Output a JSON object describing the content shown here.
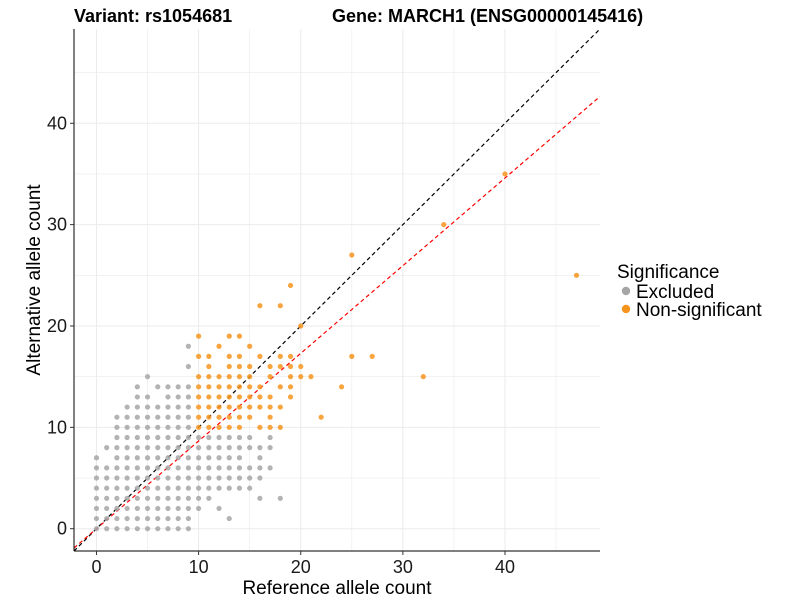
{
  "chart_data": {
    "type": "scatter",
    "title_left": "Variant: rs1054681",
    "title_right": "Gene: MARCH1 (ENSG00000145416)",
    "xlabel": "Reference allele count",
    "ylabel": "Alternative allele count",
    "xlim": [
      -2.2,
      49.3
    ],
    "ylim": [
      -2.2,
      49.3
    ],
    "xticks": [
      0,
      10,
      20,
      30,
      40
    ],
    "yticks": [
      0,
      10,
      20,
      30,
      40
    ],
    "grid": true,
    "legend": {
      "title": "Significance",
      "position": "right",
      "entries": [
        {
          "label": "Excluded",
          "color": "#a6a6a6"
        },
        {
          "label": "Non-significant",
          "color": "#f7941d"
        }
      ]
    },
    "reference_lines": [
      {
        "slope": 1.0,
        "intercept": 0,
        "color": "#000000",
        "style": "dashed"
      },
      {
        "slope": 0.865,
        "intercept": 0,
        "color": "#ff0000",
        "style": "dashed"
      }
    ],
    "series": [
      {
        "name": "Excluded",
        "color": "#a6a6a6",
        "points": [
          [
            0,
            0
          ],
          [
            0,
            1
          ],
          [
            0,
            2
          ],
          [
            0,
            3
          ],
          [
            0,
            4
          ],
          [
            0,
            5
          ],
          [
            0,
            6
          ],
          [
            0,
            7
          ],
          [
            1,
            0
          ],
          [
            1,
            1
          ],
          [
            1,
            2
          ],
          [
            1,
            3
          ],
          [
            1,
            4
          ],
          [
            1,
            5
          ],
          [
            1,
            6
          ],
          [
            1,
            8
          ],
          [
            2,
            0
          ],
          [
            2,
            1
          ],
          [
            2,
            2
          ],
          [
            2,
            3
          ],
          [
            2,
            4
          ],
          [
            2,
            5
          ],
          [
            2,
            6
          ],
          [
            2,
            7
          ],
          [
            2,
            8
          ],
          [
            2,
            9
          ],
          [
            2,
            10
          ],
          [
            2,
            11
          ],
          [
            3,
            0
          ],
          [
            3,
            1
          ],
          [
            3,
            2
          ],
          [
            3,
            3
          ],
          [
            3,
            4
          ],
          [
            3,
            5
          ],
          [
            3,
            6
          ],
          [
            3,
            7
          ],
          [
            3,
            8
          ],
          [
            3,
            9
          ],
          [
            3,
            10
          ],
          [
            3,
            11
          ],
          [
            3,
            12
          ],
          [
            4,
            0
          ],
          [
            4,
            1
          ],
          [
            4,
            2
          ],
          [
            4,
            3
          ],
          [
            4,
            4
          ],
          [
            4,
            5
          ],
          [
            4,
            6
          ],
          [
            4,
            7
          ],
          [
            4,
            8
          ],
          [
            4,
            9
          ],
          [
            4,
            10
          ],
          [
            4,
            11
          ],
          [
            4,
            12
          ],
          [
            4,
            13
          ],
          [
            4,
            14
          ],
          [
            5,
            0
          ],
          [
            5,
            1
          ],
          [
            5,
            2
          ],
          [
            5,
            3
          ],
          [
            5,
            4
          ],
          [
            5,
            5
          ],
          [
            5,
            6
          ],
          [
            5,
            7
          ],
          [
            5,
            8
          ],
          [
            5,
            9
          ],
          [
            5,
            10
          ],
          [
            5,
            11
          ],
          [
            5,
            12
          ],
          [
            5,
            13
          ],
          [
            5,
            15
          ],
          [
            6,
            0
          ],
          [
            6,
            1
          ],
          [
            6,
            2
          ],
          [
            6,
            3
          ],
          [
            6,
            4
          ],
          [
            6,
            5
          ],
          [
            6,
            6
          ],
          [
            6,
            7
          ],
          [
            6,
            8
          ],
          [
            6,
            9
          ],
          [
            6,
            10
          ],
          [
            6,
            11
          ],
          [
            6,
            12
          ],
          [
            6,
            14
          ],
          [
            7,
            0
          ],
          [
            7,
            1
          ],
          [
            7,
            2
          ],
          [
            7,
            3
          ],
          [
            7,
            4
          ],
          [
            7,
            5
          ],
          [
            7,
            6
          ],
          [
            7,
            7
          ],
          [
            7,
            8
          ],
          [
            7,
            9
          ],
          [
            7,
            10
          ],
          [
            7,
            11
          ],
          [
            7,
            12
          ],
          [
            7,
            13
          ],
          [
            7,
            14
          ],
          [
            8,
            0
          ],
          [
            8,
            1
          ],
          [
            8,
            2
          ],
          [
            8,
            3
          ],
          [
            8,
            4
          ],
          [
            8,
            5
          ],
          [
            8,
            6
          ],
          [
            8,
            7
          ],
          [
            8,
            8
          ],
          [
            8,
            9
          ],
          [
            8,
            10
          ],
          [
            8,
            11
          ],
          [
            8,
            12
          ],
          [
            8,
            13
          ],
          [
            8,
            14
          ],
          [
            9,
            0
          ],
          [
            9,
            1
          ],
          [
            9,
            2
          ],
          [
            9,
            3
          ],
          [
            9,
            4
          ],
          [
            9,
            5
          ],
          [
            9,
            6
          ],
          [
            9,
            7
          ],
          [
            9,
            8
          ],
          [
            9,
            9
          ],
          [
            9,
            10
          ],
          [
            9,
            11
          ],
          [
            9,
            12
          ],
          [
            9,
            13
          ],
          [
            9,
            14
          ],
          [
            9,
            16
          ],
          [
            9,
            18
          ],
          [
            10,
            2
          ],
          [
            10,
            3
          ],
          [
            10,
            4
          ],
          [
            10,
            5
          ],
          [
            10,
            6
          ],
          [
            10,
            7
          ],
          [
            10,
            8
          ],
          [
            10,
            9
          ],
          [
            11,
            3
          ],
          [
            11,
            4
          ],
          [
            11,
            5
          ],
          [
            11,
            6
          ],
          [
            11,
            7
          ],
          [
            11,
            8
          ],
          [
            11,
            9
          ],
          [
            12,
            2
          ],
          [
            12,
            4
          ],
          [
            12,
            5
          ],
          [
            12,
            6
          ],
          [
            12,
            7
          ],
          [
            12,
            8
          ],
          [
            12,
            9
          ],
          [
            13,
            1
          ],
          [
            13,
            4
          ],
          [
            13,
            5
          ],
          [
            13,
            6
          ],
          [
            13,
            7
          ],
          [
            13,
            8
          ],
          [
            13,
            9
          ],
          [
            14,
            4
          ],
          [
            14,
            5
          ],
          [
            14,
            6
          ],
          [
            14,
            7
          ],
          [
            14,
            8
          ],
          [
            14,
            9
          ],
          [
            15,
            4
          ],
          [
            15,
            5
          ],
          [
            15,
            6
          ],
          [
            15,
            8
          ],
          [
            15,
            9
          ],
          [
            16,
            3
          ],
          [
            16,
            5
          ],
          [
            16,
            6
          ],
          [
            16,
            7
          ],
          [
            16,
            8
          ],
          [
            17,
            6
          ],
          [
            17,
            8
          ],
          [
            17,
            9
          ],
          [
            18,
            3
          ]
        ]
      },
      {
        "name": "Non-significant",
        "color": "#f7941d",
        "points": [
          [
            10,
            10
          ],
          [
            10,
            11
          ],
          [
            10,
            12
          ],
          [
            10,
            13
          ],
          [
            10,
            14
          ],
          [
            10,
            15
          ],
          [
            10,
            17
          ],
          [
            10,
            19
          ],
          [
            11,
            10
          ],
          [
            11,
            11
          ],
          [
            11,
            12
          ],
          [
            11,
            13
          ],
          [
            11,
            14
          ],
          [
            11,
            15
          ],
          [
            11,
            16
          ],
          [
            11,
            17
          ],
          [
            12,
            10
          ],
          [
            12,
            11
          ],
          [
            12,
            12
          ],
          [
            12,
            13
          ],
          [
            12,
            14
          ],
          [
            12,
            15
          ],
          [
            12,
            18
          ],
          [
            13,
            10
          ],
          [
            13,
            11
          ],
          [
            13,
            12
          ],
          [
            13,
            13
          ],
          [
            13,
            14
          ],
          [
            13,
            15
          ],
          [
            13,
            16
          ],
          [
            13,
            17
          ],
          [
            13,
            19
          ],
          [
            14,
            10
          ],
          [
            14,
            11
          ],
          [
            14,
            12
          ],
          [
            14,
            13
          ],
          [
            14,
            14
          ],
          [
            14,
            15
          ],
          [
            14,
            16
          ],
          [
            14,
            17
          ],
          [
            14,
            19
          ],
          [
            15,
            11
          ],
          [
            15,
            12
          ],
          [
            15,
            13
          ],
          [
            15,
            14
          ],
          [
            15,
            15
          ],
          [
            15,
            16
          ],
          [
            15,
            18
          ],
          [
            16,
            10
          ],
          [
            16,
            12
          ],
          [
            16,
            13
          ],
          [
            16,
            14
          ],
          [
            16,
            17
          ],
          [
            16,
            22
          ],
          [
            17,
            10
          ],
          [
            17,
            11
          ],
          [
            17,
            12
          ],
          [
            17,
            13
          ],
          [
            17,
            15
          ],
          [
            17,
            16
          ],
          [
            18,
            10
          ],
          [
            18,
            12
          ],
          [
            18,
            14
          ],
          [
            18,
            16
          ],
          [
            18,
            17
          ],
          [
            18,
            22
          ],
          [
            19,
            13
          ],
          [
            19,
            14
          ],
          [
            19,
            15
          ],
          [
            19,
            16
          ],
          [
            19,
            17
          ],
          [
            19,
            24
          ],
          [
            20,
            15
          ],
          [
            20,
            16
          ],
          [
            20,
            20
          ],
          [
            21,
            15
          ],
          [
            22,
            11
          ],
          [
            24,
            14
          ],
          [
            25,
            17
          ],
          [
            25,
            27
          ],
          [
            27,
            17
          ],
          [
            32,
            15
          ],
          [
            34,
            30
          ],
          [
            40,
            35
          ],
          [
            47,
            25
          ]
        ]
      }
    ]
  }
}
